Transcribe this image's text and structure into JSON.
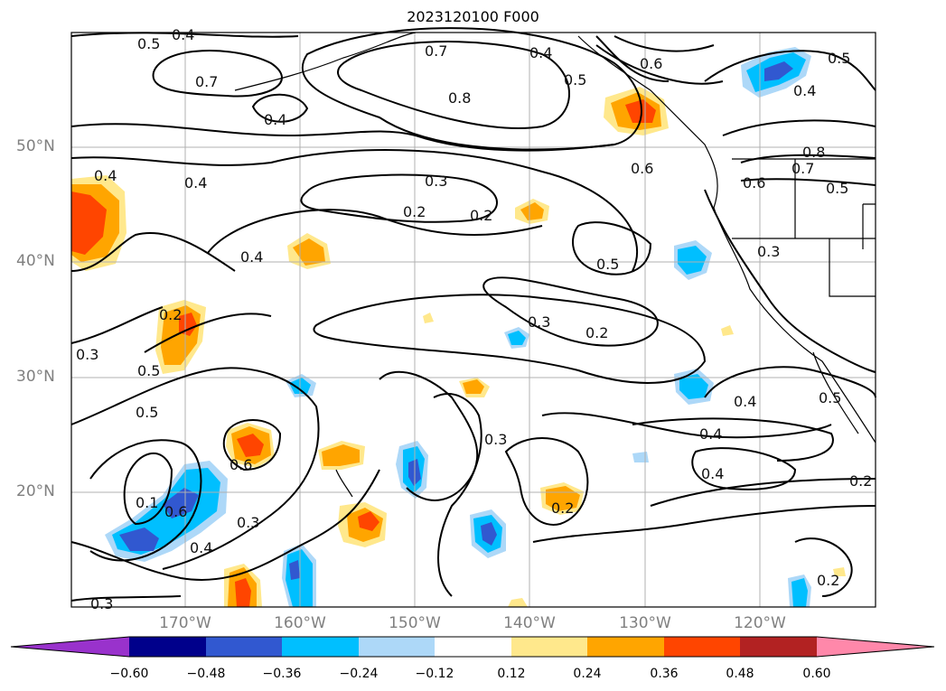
{
  "title": "2023120100 F000",
  "lat_labels": [
    "50°N",
    "40°N",
    "30°N",
    "20°N"
  ],
  "lon_labels": [
    "170°W",
    "160°W",
    "150°W",
    "140°W",
    "130°W",
    "120°W"
  ],
  "colorbar": {
    "ticks": [
      "−0.60",
      "−0.48",
      "−0.36",
      "−0.24",
      "−0.12",
      "0.12",
      "0.24",
      "0.36",
      "0.48",
      "0.60"
    ],
    "colors": [
      "#9932cc",
      "#00008b",
      "#3158d0",
      "#00bfff",
      "#add8f8",
      "#ffffff",
      "#ffe88c",
      "#ffa500",
      "#ff4500",
      "#b22222",
      "#ff88aa"
    ]
  },
  "contour_labels": [
    "0.5",
    "0.4",
    "0.7",
    "0.4",
    "0.7",
    "0.4",
    "0.5",
    "0.6",
    "0.8",
    "0.5",
    "0.4",
    "0.4",
    "0.4",
    "0.3",
    "0.2",
    "0.2",
    "0.6",
    "0.6",
    "0.8",
    "0.7",
    "0.5",
    "0.4",
    "0.5",
    "0.3",
    "0.2",
    "0.3",
    "0.5",
    "0.3",
    "0.2",
    "0.3",
    "0.4",
    "0.4",
    "0.5",
    "0.6",
    "0.1",
    "0.6",
    "0.3",
    "0.4",
    "0.4",
    "0.2",
    "0.5",
    "0.2",
    "0.2",
    "0.3"
  ]
}
